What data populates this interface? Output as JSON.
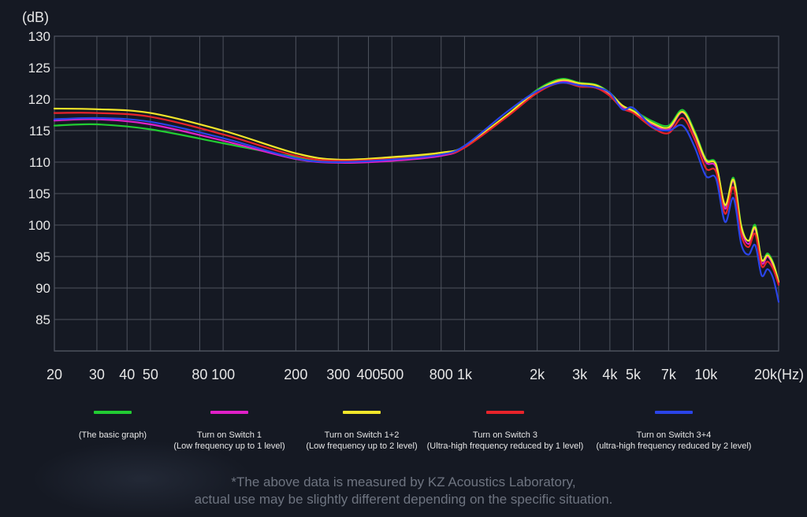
{
  "chart_data": {
    "type": "line",
    "y_unit_label": "(dB)",
    "x_unit_label": "(Hz)",
    "ylim": [
      80,
      130
    ],
    "y_ticks": [
      85,
      90,
      95,
      100,
      105,
      110,
      115,
      120,
      125,
      130
    ],
    "x_scale": "log",
    "xlim": [
      20,
      20000
    ],
    "x_ticks": [
      {
        "value": 20,
        "label": "20"
      },
      {
        "value": 30,
        "label": "30"
      },
      {
        "value": 40,
        "label": "40"
      },
      {
        "value": 50,
        "label": "50"
      },
      {
        "value": 80,
        "label": "80"
      },
      {
        "value": 100,
        "label": "100"
      },
      {
        "value": 200,
        "label": "200"
      },
      {
        "value": 300,
        "label": "300"
      },
      {
        "value": 400,
        "label": "400"
      },
      {
        "value": 500,
        "label": "500"
      },
      {
        "value": 800,
        "label": "800"
      },
      {
        "value": 1000,
        "label": "1k"
      },
      {
        "value": 2000,
        "label": "2k"
      },
      {
        "value": 3000,
        "label": "3k"
      },
      {
        "value": 4000,
        "label": "4k"
      },
      {
        "value": 5000,
        "label": "5k"
      },
      {
        "value": 7000,
        "label": "7k"
      },
      {
        "value": 10000,
        "label": "10k"
      },
      {
        "value": 20000,
        "label": "20k"
      }
    ],
    "grid": true,
    "legend_position": "bottom",
    "x": [
      20,
      30,
      50,
      100,
      200,
      300,
      500,
      800,
      1000,
      1500,
      2000,
      2500,
      3000,
      3500,
      4000,
      4500,
      5000,
      6000,
      7000,
      8000,
      9000,
      10000,
      11000,
      12000,
      13000,
      14000,
      15000,
      16000,
      17000,
      18000,
      19000,
      20000
    ],
    "series": [
      {
        "name": "(The basic graph)",
        "color": "#22cc33",
        "values": [
          115.8,
          116.0,
          115.2,
          113.0,
          110.8,
          110.2,
          110.6,
          111.5,
          112.5,
          117.5,
          121.5,
          123.2,
          122.6,
          122.3,
          121.0,
          119.0,
          118.2,
          116.5,
          115.8,
          118.3,
          114.8,
          110.5,
          109.8,
          103.0,
          107.5,
          100.0,
          97.5,
          100.0,
          94.5,
          95.5,
          94.0,
          91.0
        ]
      },
      {
        "name": "Turn on Switch 1",
        "color": "#e020c8",
        "values": [
          116.6,
          116.8,
          116.0,
          113.4,
          110.5,
          109.9,
          110.2,
          111.0,
          112.3,
          117.3,
          121.0,
          122.8,
          122.2,
          121.8,
          120.7,
          118.8,
          118.0,
          116.0,
          115.2,
          117.9,
          114.3,
          110.0,
          109.2,
          102.6,
          107.0,
          99.5,
          97.0,
          99.4,
          94.0,
          95.0,
          93.5,
          90.8
        ]
      },
      {
        "name": "Turn on Switch 1+2",
        "color": "#f2e62a",
        "values": [
          118.5,
          118.4,
          117.8,
          115.0,
          111.4,
          110.4,
          110.8,
          111.5,
          112.5,
          117.5,
          121.3,
          123.0,
          122.5,
          122.2,
          120.9,
          119.0,
          118.1,
          116.2,
          115.5,
          118.0,
          114.5,
          110.3,
          109.6,
          103.2,
          107.2,
          99.8,
          97.5,
          99.6,
          94.5,
          95.2,
          93.8,
          91.0
        ]
      },
      {
        "name": "Turn on Switch 3",
        "color": "#e8232a",
        "values": [
          117.8,
          117.8,
          117.2,
          114.4,
          111.0,
          110.2,
          110.5,
          111.2,
          112.3,
          117.2,
          121.0,
          122.6,
          122.0,
          121.8,
          120.5,
          118.5,
          117.8,
          115.5,
          114.6,
          117.0,
          113.5,
          109.0,
          108.5,
          101.8,
          106.0,
          98.5,
          96.5,
          98.6,
          93.5,
          94.2,
          93.0,
          90.5
        ]
      },
      {
        "name": "Turn on Switch 3+4",
        "color": "#2a44e8",
        "values": [
          116.8,
          117.0,
          116.4,
          113.8,
          110.6,
          110.0,
          110.4,
          111.2,
          112.6,
          118.0,
          121.3,
          122.6,
          122.2,
          121.9,
          121.0,
          118.4,
          118.6,
          115.6,
          115.0,
          115.8,
          112.3,
          107.8,
          107.4,
          100.5,
          104.3,
          97.0,
          95.3,
          96.8,
          92.0,
          93.0,
          91.5,
          87.8
        ]
      }
    ]
  },
  "legend": [
    {
      "label": "(The basic graph)",
      "sub": "",
      "color": "#22cc33"
    },
    {
      "label": "Turn on Switch 1",
      "sub": "(Low frequency up to 1 level)",
      "color": "#e020c8"
    },
    {
      "label": "Turn on Switch 1+2",
      "sub": "(Low frequency up to 2 level)",
      "color": "#f2e62a"
    },
    {
      "label": "Turn on Switch 3",
      "sub": "(Ultra-high frequency reduced by 1 level)",
      "color": "#e8232a"
    },
    {
      "label": "Turn on Switch 3+4",
      "sub": "(ultra-high frequency reduced by 2 level)",
      "color": "#2a44e8"
    }
  ],
  "footnote": {
    "line1": "*The above data is measured by KZ Acoustics Laboratory,",
    "line2": "actual use may be slightly different depending on the specific situation."
  }
}
